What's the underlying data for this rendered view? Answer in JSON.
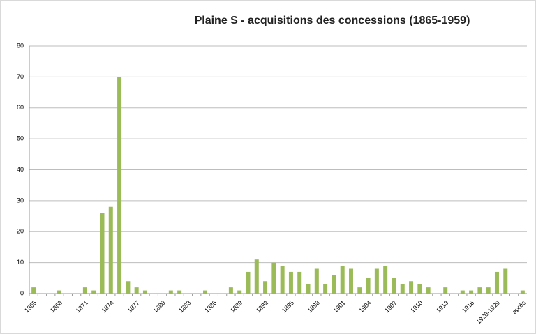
{
  "chart_data": {
    "type": "bar",
    "title": "Plaine S - acquisitions des concessions (1865-1959)",
    "categories": [
      "1865",
      null,
      null,
      "1868",
      null,
      null,
      "1871",
      null,
      null,
      "1874",
      null,
      null,
      "1877",
      null,
      null,
      "1880",
      null,
      null,
      "1883",
      null,
      null,
      "1886",
      null,
      null,
      "1889",
      null,
      null,
      "1892",
      null,
      null,
      "1895",
      null,
      null,
      "1898",
      null,
      null,
      "1901",
      null,
      null,
      "1904",
      null,
      null,
      "1907",
      null,
      null,
      "1910",
      null,
      null,
      "1913",
      null,
      null,
      "1916",
      null,
      null,
      "1920-1929",
      null,
      null,
      "après"
    ],
    "values": [
      2,
      0,
      0,
      1,
      0,
      0,
      2,
      1,
      26,
      28,
      70,
      4,
      2,
      1,
      0,
      0,
      1,
      1,
      0,
      0,
      1,
      0,
      0,
      2,
      1,
      7,
      11,
      4,
      10,
      9,
      7,
      7,
      3,
      8,
      3,
      6,
      9,
      8,
      2,
      5,
      8,
      9,
      5,
      3,
      4,
      3,
      2,
      0,
      2,
      0,
      1,
      1,
      2,
      2,
      7,
      8,
      0,
      1
    ],
    "color": "#9bbb59",
    "ylim": [
      0,
      80
    ],
    "yticks": [
      0,
      10,
      20,
      30,
      40,
      50,
      60,
      70,
      80
    ],
    "grid": true
  }
}
